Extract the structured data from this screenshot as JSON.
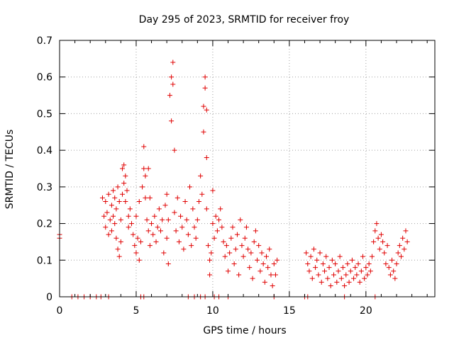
{
  "chart_data": {
    "type": "scatter",
    "title": "Day 295 of 2023, SRMTID for receiver froy",
    "xlabel": "GPS time / hours",
    "ylabel": "SRMTID / TECUs",
    "xlim": [
      0,
      24.5
    ],
    "ylim": [
      0,
      0.7
    ],
    "xticks": [
      0,
      5,
      10,
      15,
      20
    ],
    "xtick_labels": [
      "0",
      "5",
      "10",
      "15",
      "20"
    ],
    "yticks": [
      0,
      0.1,
      0.2,
      0.3,
      0.4,
      0.5,
      0.6,
      0.7
    ],
    "ytick_labels": [
      "0",
      "0.1",
      "0.2",
      "0.3",
      "0.4",
      "0.5",
      "0.6",
      "0.7"
    ],
    "grid": true,
    "marker": "+",
    "color": "#e00000",
    "series": [
      {
        "name": "SRMTID",
        "points": [
          [
            0.0,
            0.17
          ],
          [
            0.0,
            0.16
          ],
          [
            0.8,
            0.0
          ],
          [
            1.2,
            0.0
          ],
          [
            1.6,
            0.0
          ],
          [
            2.0,
            0.0
          ],
          [
            2.4,
            0.0
          ],
          [
            2.7,
            0.0
          ],
          [
            3.2,
            0.0
          ],
          [
            2.8,
            0.27
          ],
          [
            2.9,
            0.22
          ],
          [
            3.0,
            0.19
          ],
          [
            3.0,
            0.26
          ],
          [
            3.1,
            0.23
          ],
          [
            3.2,
            0.17
          ],
          [
            3.2,
            0.28
          ],
          [
            3.3,
            0.21
          ],
          [
            3.4,
            0.25
          ],
          [
            3.4,
            0.18
          ],
          [
            3.5,
            0.29
          ],
          [
            3.5,
            0.22
          ],
          [
            3.6,
            0.2
          ],
          [
            3.6,
            0.27
          ],
          [
            3.7,
            0.16
          ],
          [
            3.7,
            0.24
          ],
          [
            3.8,
            0.13
          ],
          [
            3.8,
            0.3
          ],
          [
            3.9,
            0.11
          ],
          [
            3.9,
            0.26
          ],
          [
            4.0,
            0.15
          ],
          [
            4.0,
            0.21
          ],
          [
            4.1,
            0.35
          ],
          [
            4.1,
            0.28
          ],
          [
            4.2,
            0.36
          ],
          [
            4.2,
            0.31
          ],
          [
            4.3,
            0.33
          ],
          [
            4.3,
            0.26
          ],
          [
            4.4,
            0.29
          ],
          [
            4.5,
            0.22
          ],
          [
            4.5,
            0.19
          ],
          [
            4.6,
            0.24
          ],
          [
            4.7,
            0.2
          ],
          [
            4.8,
            0.17
          ],
          [
            4.9,
            0.14
          ],
          [
            5.0,
            0.12
          ],
          [
            5.0,
            0.22
          ],
          [
            5.1,
            0.16
          ],
          [
            5.2,
            0.1
          ],
          [
            5.2,
            0.26
          ],
          [
            5.3,
            0.15
          ],
          [
            5.4,
            0.3
          ],
          [
            5.5,
            0.35
          ],
          [
            5.5,
            0.41
          ],
          [
            5.6,
            0.27
          ],
          [
            5.6,
            0.33
          ],
          [
            5.7,
            0.21
          ],
          [
            5.8,
            0.18
          ],
          [
            5.9,
            0.14
          ],
          [
            5.8,
            0.35
          ],
          [
            5.9,
            0.27
          ],
          [
            6.0,
            0.2
          ],
          [
            6.1,
            0.17
          ],
          [
            6.2,
            0.22
          ],
          [
            6.3,
            0.15
          ],
          [
            6.4,
            0.19
          ],
          [
            6.5,
            0.24
          ],
          [
            6.6,
            0.18
          ],
          [
            6.7,
            0.21
          ],
          [
            6.8,
            0.12
          ],
          [
            6.9,
            0.25
          ],
          [
            7.0,
            0.16
          ],
          [
            7.0,
            0.28
          ],
          [
            7.1,
            0.21
          ],
          [
            7.1,
            0.09
          ],
          [
            7.2,
            0.55
          ],
          [
            7.3,
            0.6
          ],
          [
            7.3,
            0.48
          ],
          [
            7.4,
            0.64
          ],
          [
            7.4,
            0.58
          ],
          [
            7.5,
            0.4
          ],
          [
            7.5,
            0.23
          ],
          [
            7.6,
            0.18
          ],
          [
            7.7,
            0.27
          ],
          [
            7.8,
            0.15
          ],
          [
            7.9,
            0.22
          ],
          [
            8.0,
            0.19
          ],
          [
            8.1,
            0.13
          ],
          [
            8.2,
            0.26
          ],
          [
            8.3,
            0.21
          ],
          [
            8.4,
            0.17
          ],
          [
            8.5,
            0.3
          ],
          [
            8.6,
            0.14
          ],
          [
            8.7,
            0.24
          ],
          [
            8.8,
            0.19
          ],
          [
            8.9,
            0.16
          ],
          [
            9.0,
            0.21
          ],
          [
            9.1,
            0.26
          ],
          [
            9.2,
            0.33
          ],
          [
            9.3,
            0.28
          ],
          [
            9.4,
            0.45
          ],
          [
            9.4,
            0.52
          ],
          [
            9.5,
            0.6
          ],
          [
            9.5,
            0.57
          ],
          [
            9.6,
            0.51
          ],
          [
            9.6,
            0.38
          ],
          [
            9.6,
            0.24
          ],
          [
            9.7,
            0.14
          ],
          [
            9.8,
            0.1
          ],
          [
            9.8,
            0.06
          ],
          [
            9.9,
            0.12
          ],
          [
            10.0,
            0.29
          ],
          [
            10.0,
            0.2
          ],
          [
            10.1,
            0.16
          ],
          [
            10.2,
            0.22
          ],
          [
            10.3,
            0.18
          ],
          [
            10.4,
            0.21
          ],
          [
            10.5,
            0.24
          ],
          [
            10.6,
            0.19
          ],
          [
            10.7,
            0.15
          ],
          [
            10.8,
            0.11
          ],
          [
            10.9,
            0.14
          ],
          [
            11.0,
            0.07
          ],
          [
            11.1,
            0.12
          ],
          [
            11.2,
            0.16
          ],
          [
            11.3,
            0.19
          ],
          [
            11.4,
            0.09
          ],
          [
            11.5,
            0.13
          ],
          [
            11.6,
            0.17
          ],
          [
            11.7,
            0.06
          ],
          [
            11.8,
            0.21
          ],
          [
            11.9,
            0.14
          ],
          [
            12.0,
            0.11
          ],
          [
            12.1,
            0.16
          ],
          [
            12.2,
            0.19
          ],
          [
            12.3,
            0.13
          ],
          [
            12.4,
            0.08
          ],
          [
            12.5,
            0.12
          ],
          [
            12.6,
            0.05
          ],
          [
            12.7,
            0.15
          ],
          [
            12.8,
            0.18
          ],
          [
            12.9,
            0.1
          ],
          [
            13.0,
            0.14
          ],
          [
            13.1,
            0.07
          ],
          [
            13.2,
            0.12
          ],
          [
            13.3,
            0.09
          ],
          [
            13.4,
            0.04
          ],
          [
            13.5,
            0.11
          ],
          [
            13.6,
            0.08
          ],
          [
            13.7,
            0.13
          ],
          [
            13.8,
            0.06
          ],
          [
            13.9,
            0.03
          ],
          [
            14.0,
            0.09
          ],
          [
            14.1,
            0.06
          ],
          [
            14.2,
            0.1
          ],
          [
            16.1,
            0.12
          ],
          [
            16.2,
            0.09
          ],
          [
            16.3,
            0.07
          ],
          [
            16.4,
            0.11
          ],
          [
            16.5,
            0.05
          ],
          [
            16.6,
            0.13
          ],
          [
            16.7,
            0.08
          ],
          [
            16.8,
            0.1
          ],
          [
            16.9,
            0.06
          ],
          [
            17.0,
            0.12
          ],
          [
            17.1,
            0.04
          ],
          [
            17.2,
            0.09
          ],
          [
            17.3,
            0.07
          ],
          [
            17.4,
            0.11
          ],
          [
            17.5,
            0.05
          ],
          [
            17.6,
            0.08
          ],
          [
            17.7,
            0.03
          ],
          [
            17.8,
            0.1
          ],
          [
            17.9,
            0.06
          ],
          [
            18.0,
            0.09
          ],
          [
            18.1,
            0.04
          ],
          [
            18.2,
            0.07
          ],
          [
            18.3,
            0.11
          ],
          [
            18.4,
            0.05
          ],
          [
            18.5,
            0.08
          ],
          [
            18.6,
            0.03
          ],
          [
            18.7,
            0.06
          ],
          [
            18.8,
            0.09
          ],
          [
            18.9,
            0.04
          ],
          [
            19.0,
            0.07
          ],
          [
            19.1,
            0.1
          ],
          [
            19.2,
            0.05
          ],
          [
            19.3,
            0.08
          ],
          [
            19.4,
            0.06
          ],
          [
            19.5,
            0.09
          ],
          [
            19.6,
            0.04
          ],
          [
            19.7,
            0.07
          ],
          [
            19.8,
            0.11
          ],
          [
            19.9,
            0.05
          ],
          [
            20.0,
            0.08
          ],
          [
            20.1,
            0.06
          ],
          [
            20.2,
            0.09
          ],
          [
            20.3,
            0.07
          ],
          [
            20.4,
            0.11
          ],
          [
            20.5,
            0.15
          ],
          [
            20.6,
            0.18
          ],
          [
            20.7,
            0.2
          ],
          [
            20.8,
            0.16
          ],
          [
            20.9,
            0.13
          ],
          [
            21.0,
            0.17
          ],
          [
            21.1,
            0.15
          ],
          [
            21.2,
            0.12
          ],
          [
            21.3,
            0.09
          ],
          [
            21.4,
            0.14
          ],
          [
            21.5,
            0.08
          ],
          [
            21.6,
            0.06
          ],
          [
            21.7,
            0.1
          ],
          [
            21.8,
            0.07
          ],
          [
            21.9,
            0.05
          ],
          [
            22.0,
            0.09
          ],
          [
            22.1,
            0.12
          ],
          [
            22.2,
            0.14
          ],
          [
            22.3,
            0.11
          ],
          [
            22.4,
            0.16
          ],
          [
            22.5,
            0.13
          ],
          [
            22.6,
            0.18
          ],
          [
            22.7,
            0.15
          ],
          [
            5.3,
            0.0
          ],
          [
            5.5,
            0.0
          ],
          [
            8.4,
            0.0
          ],
          [
            8.8,
            0.0
          ],
          [
            9.2,
            0.0
          ],
          [
            9.5,
            0.0
          ],
          [
            10.1,
            0.0
          ],
          [
            10.4,
            0.0
          ],
          [
            11.0,
            0.0
          ],
          [
            14.0,
            0.0
          ],
          [
            16.0,
            0.0
          ],
          [
            16.2,
            0.0
          ],
          [
            18.6,
            0.0
          ],
          [
            20.6,
            0.0
          ]
        ]
      }
    ]
  }
}
